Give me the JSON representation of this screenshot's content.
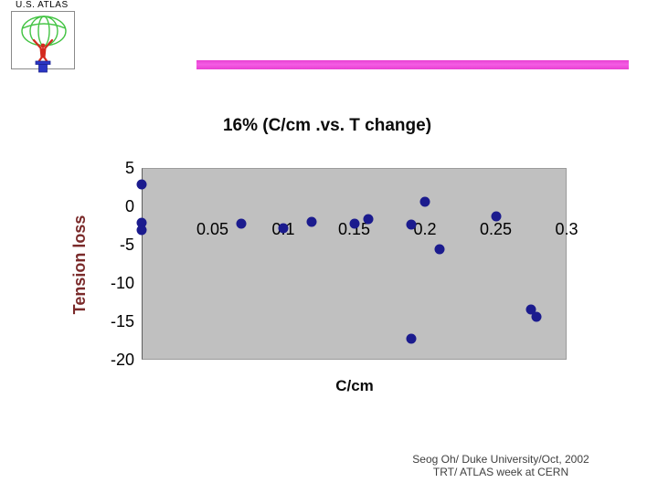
{
  "slide": {
    "logo_label": "U.S. ATLAS",
    "accent_bar_color": "#ee4fdd",
    "footer": {
      "line1": "Seog Oh/ Duke University/Oct, 2002",
      "line2": "TRT/ ATLAS week at CERN"
    }
  },
  "chart_data": {
    "type": "scatter",
    "title": "16% (C/cm .vs. T change)",
    "xlabel": "C/cm",
    "ylabel": "Tension loss",
    "xlim": [
      0,
      0.3
    ],
    "ylim": [
      -20,
      5
    ],
    "x_ticks": [
      0.05,
      0.1,
      0.15,
      0.2,
      0.25,
      0.3
    ],
    "x_tick_labels": [
      "0.05",
      "0.1",
      "0.15",
      "0.2",
      "0.25",
      "0.3"
    ],
    "y_ticks": [
      5,
      0,
      -5,
      -10,
      -15,
      -20
    ],
    "y_tick_labels": [
      "5",
      "0",
      "-5",
      "-10",
      "-15",
      "-20"
    ],
    "grid": false,
    "legend": false,
    "plot_bg_color": "#c0c0c0",
    "marker_color": "#1b1b8e",
    "ylabel_color": "#7a2a2a",
    "points": [
      {
        "x": 0.0,
        "y": 2.8
      },
      {
        "x": 0.0,
        "y": -2.2
      },
      {
        "x": 0.0,
        "y": -3.1
      },
      {
        "x": 0.07,
        "y": -2.3
      },
      {
        "x": 0.1,
        "y": -2.9
      },
      {
        "x": 0.12,
        "y": -2.0
      },
      {
        "x": 0.15,
        "y": -2.3
      },
      {
        "x": 0.16,
        "y": -1.7
      },
      {
        "x": 0.19,
        "y": -2.4
      },
      {
        "x": 0.2,
        "y": 0.6
      },
      {
        "x": 0.21,
        "y": -5.6
      },
      {
        "x": 0.25,
        "y": -1.3
      },
      {
        "x": 0.275,
        "y": -13.5
      },
      {
        "x": 0.279,
        "y": -14.4
      },
      {
        "x": 0.19,
        "y": -17.3
      }
    ]
  }
}
